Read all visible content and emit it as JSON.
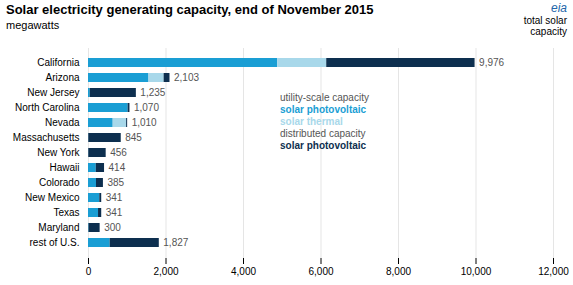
{
  "chart_data": {
    "type": "bar",
    "orientation": "horizontal",
    "stacked": true,
    "title": "Solar electricity generating capacity, end of November 2015",
    "subtitle": "megawatts",
    "categories": [
      "California",
      "Arizona",
      "New Jersey",
      "North Carolina",
      "Nevada",
      "Massachusetts",
      "New York",
      "Hawaii",
      "Colorado",
      "New Mexico",
      "Texas",
      "Maryland",
      "rest of U.S."
    ],
    "series": [
      {
        "name": "solar photovoltaic",
        "group": "utility-scale capacity",
        "color": "#1a9ed4",
        "values": [
          4882,
          1560,
          46,
          1023,
          637,
          8,
          8,
          200,
          206,
          291,
          259,
          14,
          560
        ]
      },
      {
        "name": "solar thermal",
        "group": "utility-scale capacity",
        "color": "#a8d8ea",
        "values": [
          1266,
          392,
          0,
          0,
          347,
          0,
          0,
          0,
          0,
          0,
          0,
          0,
          0
        ]
      },
      {
        "name": "solar photovoltaic",
        "group": "distributed capacity",
        "color": "#0d2f4f",
        "values": [
          3828,
          151,
          1189,
          47,
          26,
          837,
          448,
          214,
          179,
          50,
          82,
          286,
          1267
        ]
      }
    ],
    "totals": [
      9976,
      2103,
      1235,
      1070,
      1010,
      845,
      456,
      414,
      385,
      341,
      341,
      300,
      1827
    ],
    "total_labels": [
      "9,976",
      "2,103",
      "1,235",
      "1,070",
      "1,010",
      "845",
      "456",
      "414",
      "385",
      "341",
      "341",
      "300",
      "1,827"
    ],
    "totals_label": "total solar\ncapacity",
    "annotations": [
      "eia"
    ],
    "xlim": [
      0,
      12000
    ],
    "xticks": [
      0,
      {
        "value": 2000,
        "label": "2,000"
      },
      {
        "value": 4000,
        "label": "4,000"
      },
      {
        "value": 6000,
        "label": "6,000"
      },
      {
        "value": 8000,
        "label": "8,000"
      },
      {
        "value": 10000,
        "label": "10,000"
      },
      {
        "value": 12000,
        "label": "12,000"
      }
    ],
    "grid": true
  }
}
